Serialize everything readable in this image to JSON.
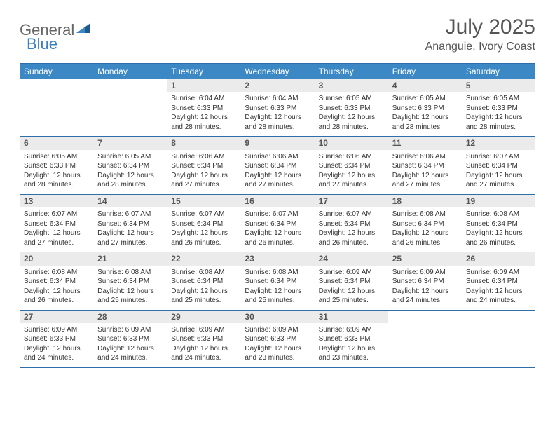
{
  "logo": {
    "text1": "General",
    "text2": "Blue"
  },
  "title": "July 2025",
  "location": "Ananguie, Ivory Coast",
  "colors": {
    "header_bg": "#3b88c4",
    "border": "#2f6fa8",
    "daynum_bg": "#ebebeb",
    "text": "#333333",
    "title": "#555555",
    "logo_blue": "#3b7fc4"
  },
  "weekdays": [
    "Sunday",
    "Monday",
    "Tuesday",
    "Wednesday",
    "Thursday",
    "Friday",
    "Saturday"
  ],
  "weeks": [
    [
      null,
      null,
      {
        "n": "1",
        "sr": "Sunrise: 6:04 AM",
        "ss": "Sunset: 6:33 PM",
        "dl": "Daylight: 12 hours and 28 minutes."
      },
      {
        "n": "2",
        "sr": "Sunrise: 6:04 AM",
        "ss": "Sunset: 6:33 PM",
        "dl": "Daylight: 12 hours and 28 minutes."
      },
      {
        "n": "3",
        "sr": "Sunrise: 6:05 AM",
        "ss": "Sunset: 6:33 PM",
        "dl": "Daylight: 12 hours and 28 minutes."
      },
      {
        "n": "4",
        "sr": "Sunrise: 6:05 AM",
        "ss": "Sunset: 6:33 PM",
        "dl": "Daylight: 12 hours and 28 minutes."
      },
      {
        "n": "5",
        "sr": "Sunrise: 6:05 AM",
        "ss": "Sunset: 6:33 PM",
        "dl": "Daylight: 12 hours and 28 minutes."
      }
    ],
    [
      {
        "n": "6",
        "sr": "Sunrise: 6:05 AM",
        "ss": "Sunset: 6:33 PM",
        "dl": "Daylight: 12 hours and 28 minutes."
      },
      {
        "n": "7",
        "sr": "Sunrise: 6:05 AM",
        "ss": "Sunset: 6:34 PM",
        "dl": "Daylight: 12 hours and 28 minutes."
      },
      {
        "n": "8",
        "sr": "Sunrise: 6:06 AM",
        "ss": "Sunset: 6:34 PM",
        "dl": "Daylight: 12 hours and 27 minutes."
      },
      {
        "n": "9",
        "sr": "Sunrise: 6:06 AM",
        "ss": "Sunset: 6:34 PM",
        "dl": "Daylight: 12 hours and 27 minutes."
      },
      {
        "n": "10",
        "sr": "Sunrise: 6:06 AM",
        "ss": "Sunset: 6:34 PM",
        "dl": "Daylight: 12 hours and 27 minutes."
      },
      {
        "n": "11",
        "sr": "Sunrise: 6:06 AM",
        "ss": "Sunset: 6:34 PM",
        "dl": "Daylight: 12 hours and 27 minutes."
      },
      {
        "n": "12",
        "sr": "Sunrise: 6:07 AM",
        "ss": "Sunset: 6:34 PM",
        "dl": "Daylight: 12 hours and 27 minutes."
      }
    ],
    [
      {
        "n": "13",
        "sr": "Sunrise: 6:07 AM",
        "ss": "Sunset: 6:34 PM",
        "dl": "Daylight: 12 hours and 27 minutes."
      },
      {
        "n": "14",
        "sr": "Sunrise: 6:07 AM",
        "ss": "Sunset: 6:34 PM",
        "dl": "Daylight: 12 hours and 27 minutes."
      },
      {
        "n": "15",
        "sr": "Sunrise: 6:07 AM",
        "ss": "Sunset: 6:34 PM",
        "dl": "Daylight: 12 hours and 26 minutes."
      },
      {
        "n": "16",
        "sr": "Sunrise: 6:07 AM",
        "ss": "Sunset: 6:34 PM",
        "dl": "Daylight: 12 hours and 26 minutes."
      },
      {
        "n": "17",
        "sr": "Sunrise: 6:07 AM",
        "ss": "Sunset: 6:34 PM",
        "dl": "Daylight: 12 hours and 26 minutes."
      },
      {
        "n": "18",
        "sr": "Sunrise: 6:08 AM",
        "ss": "Sunset: 6:34 PM",
        "dl": "Daylight: 12 hours and 26 minutes."
      },
      {
        "n": "19",
        "sr": "Sunrise: 6:08 AM",
        "ss": "Sunset: 6:34 PM",
        "dl": "Daylight: 12 hours and 26 minutes."
      }
    ],
    [
      {
        "n": "20",
        "sr": "Sunrise: 6:08 AM",
        "ss": "Sunset: 6:34 PM",
        "dl": "Daylight: 12 hours and 26 minutes."
      },
      {
        "n": "21",
        "sr": "Sunrise: 6:08 AM",
        "ss": "Sunset: 6:34 PM",
        "dl": "Daylight: 12 hours and 25 minutes."
      },
      {
        "n": "22",
        "sr": "Sunrise: 6:08 AM",
        "ss": "Sunset: 6:34 PM",
        "dl": "Daylight: 12 hours and 25 minutes."
      },
      {
        "n": "23",
        "sr": "Sunrise: 6:08 AM",
        "ss": "Sunset: 6:34 PM",
        "dl": "Daylight: 12 hours and 25 minutes."
      },
      {
        "n": "24",
        "sr": "Sunrise: 6:09 AM",
        "ss": "Sunset: 6:34 PM",
        "dl": "Daylight: 12 hours and 25 minutes."
      },
      {
        "n": "25",
        "sr": "Sunrise: 6:09 AM",
        "ss": "Sunset: 6:34 PM",
        "dl": "Daylight: 12 hours and 24 minutes."
      },
      {
        "n": "26",
        "sr": "Sunrise: 6:09 AM",
        "ss": "Sunset: 6:34 PM",
        "dl": "Daylight: 12 hours and 24 minutes."
      }
    ],
    [
      {
        "n": "27",
        "sr": "Sunrise: 6:09 AM",
        "ss": "Sunset: 6:33 PM",
        "dl": "Daylight: 12 hours and 24 minutes."
      },
      {
        "n": "28",
        "sr": "Sunrise: 6:09 AM",
        "ss": "Sunset: 6:33 PM",
        "dl": "Daylight: 12 hours and 24 minutes."
      },
      {
        "n": "29",
        "sr": "Sunrise: 6:09 AM",
        "ss": "Sunset: 6:33 PM",
        "dl": "Daylight: 12 hours and 24 minutes."
      },
      {
        "n": "30",
        "sr": "Sunrise: 6:09 AM",
        "ss": "Sunset: 6:33 PM",
        "dl": "Daylight: 12 hours and 23 minutes."
      },
      {
        "n": "31",
        "sr": "Sunrise: 6:09 AM",
        "ss": "Sunset: 6:33 PM",
        "dl": "Daylight: 12 hours and 23 minutes."
      },
      null,
      null
    ]
  ]
}
